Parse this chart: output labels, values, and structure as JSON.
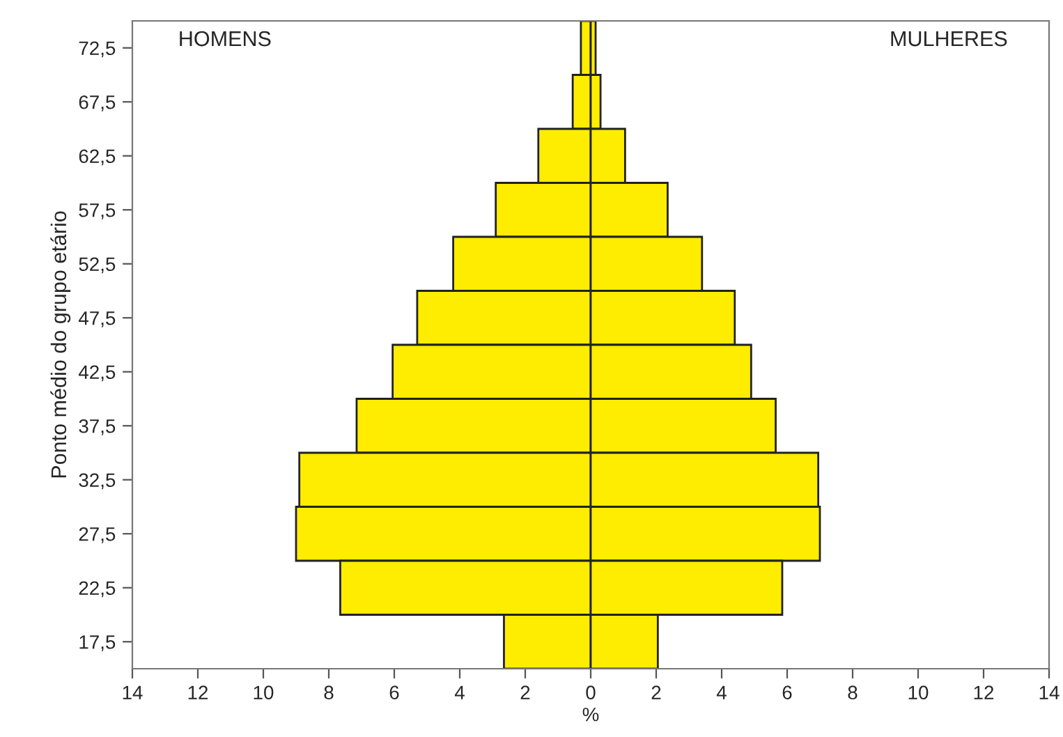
{
  "chart_data": {
    "type": "bar",
    "orientation": "horizontal",
    "stacked": true,
    "xlabel": "%",
    "ylabel": "Ponto médio do grupo etário",
    "categories": [
      "72,5",
      "67,5",
      "62,5",
      "57,5",
      "52,5",
      "47,5",
      "42,5",
      "37,5",
      "32,5",
      "27,5",
      "22,5",
      "17,5"
    ],
    "series": [
      {
        "color": "#ffed00",
        "values": [
          -0.3,
          -0.55,
          -1.6,
          -2.9,
          -4.2,
          -5.3,
          -6.05,
          -7.15,
          -8.9,
          -9.0,
          -7.65,
          -2.65
        ]
      },
      {
        "color": "#ffed00",
        "values": [
          0.15,
          0.3,
          1.05,
          2.35,
          3.4,
          4.4,
          4.9,
          5.65,
          6.95,
          7.0,
          5.85,
          2.05
        ]
      }
    ],
    "xlim": [
      -14,
      14
    ],
    "xticks": [
      {
        "value": -14,
        "label": "14"
      },
      {
        "value": -12,
        "label": "12"
      },
      {
        "value": -10,
        "label": "10"
      },
      {
        "value": -8,
        "label": "8"
      },
      {
        "value": -6,
        "label": "6"
      },
      {
        "value": -4,
        "label": "4"
      },
      {
        "value": -2,
        "label": "2"
      },
      0,
      2,
      4,
      6,
      8,
      10,
      12,
      14
    ],
    "annotations": [
      "HOMENS",
      "MULHERES"
    ],
    "grid": false,
    "legend": false
  }
}
